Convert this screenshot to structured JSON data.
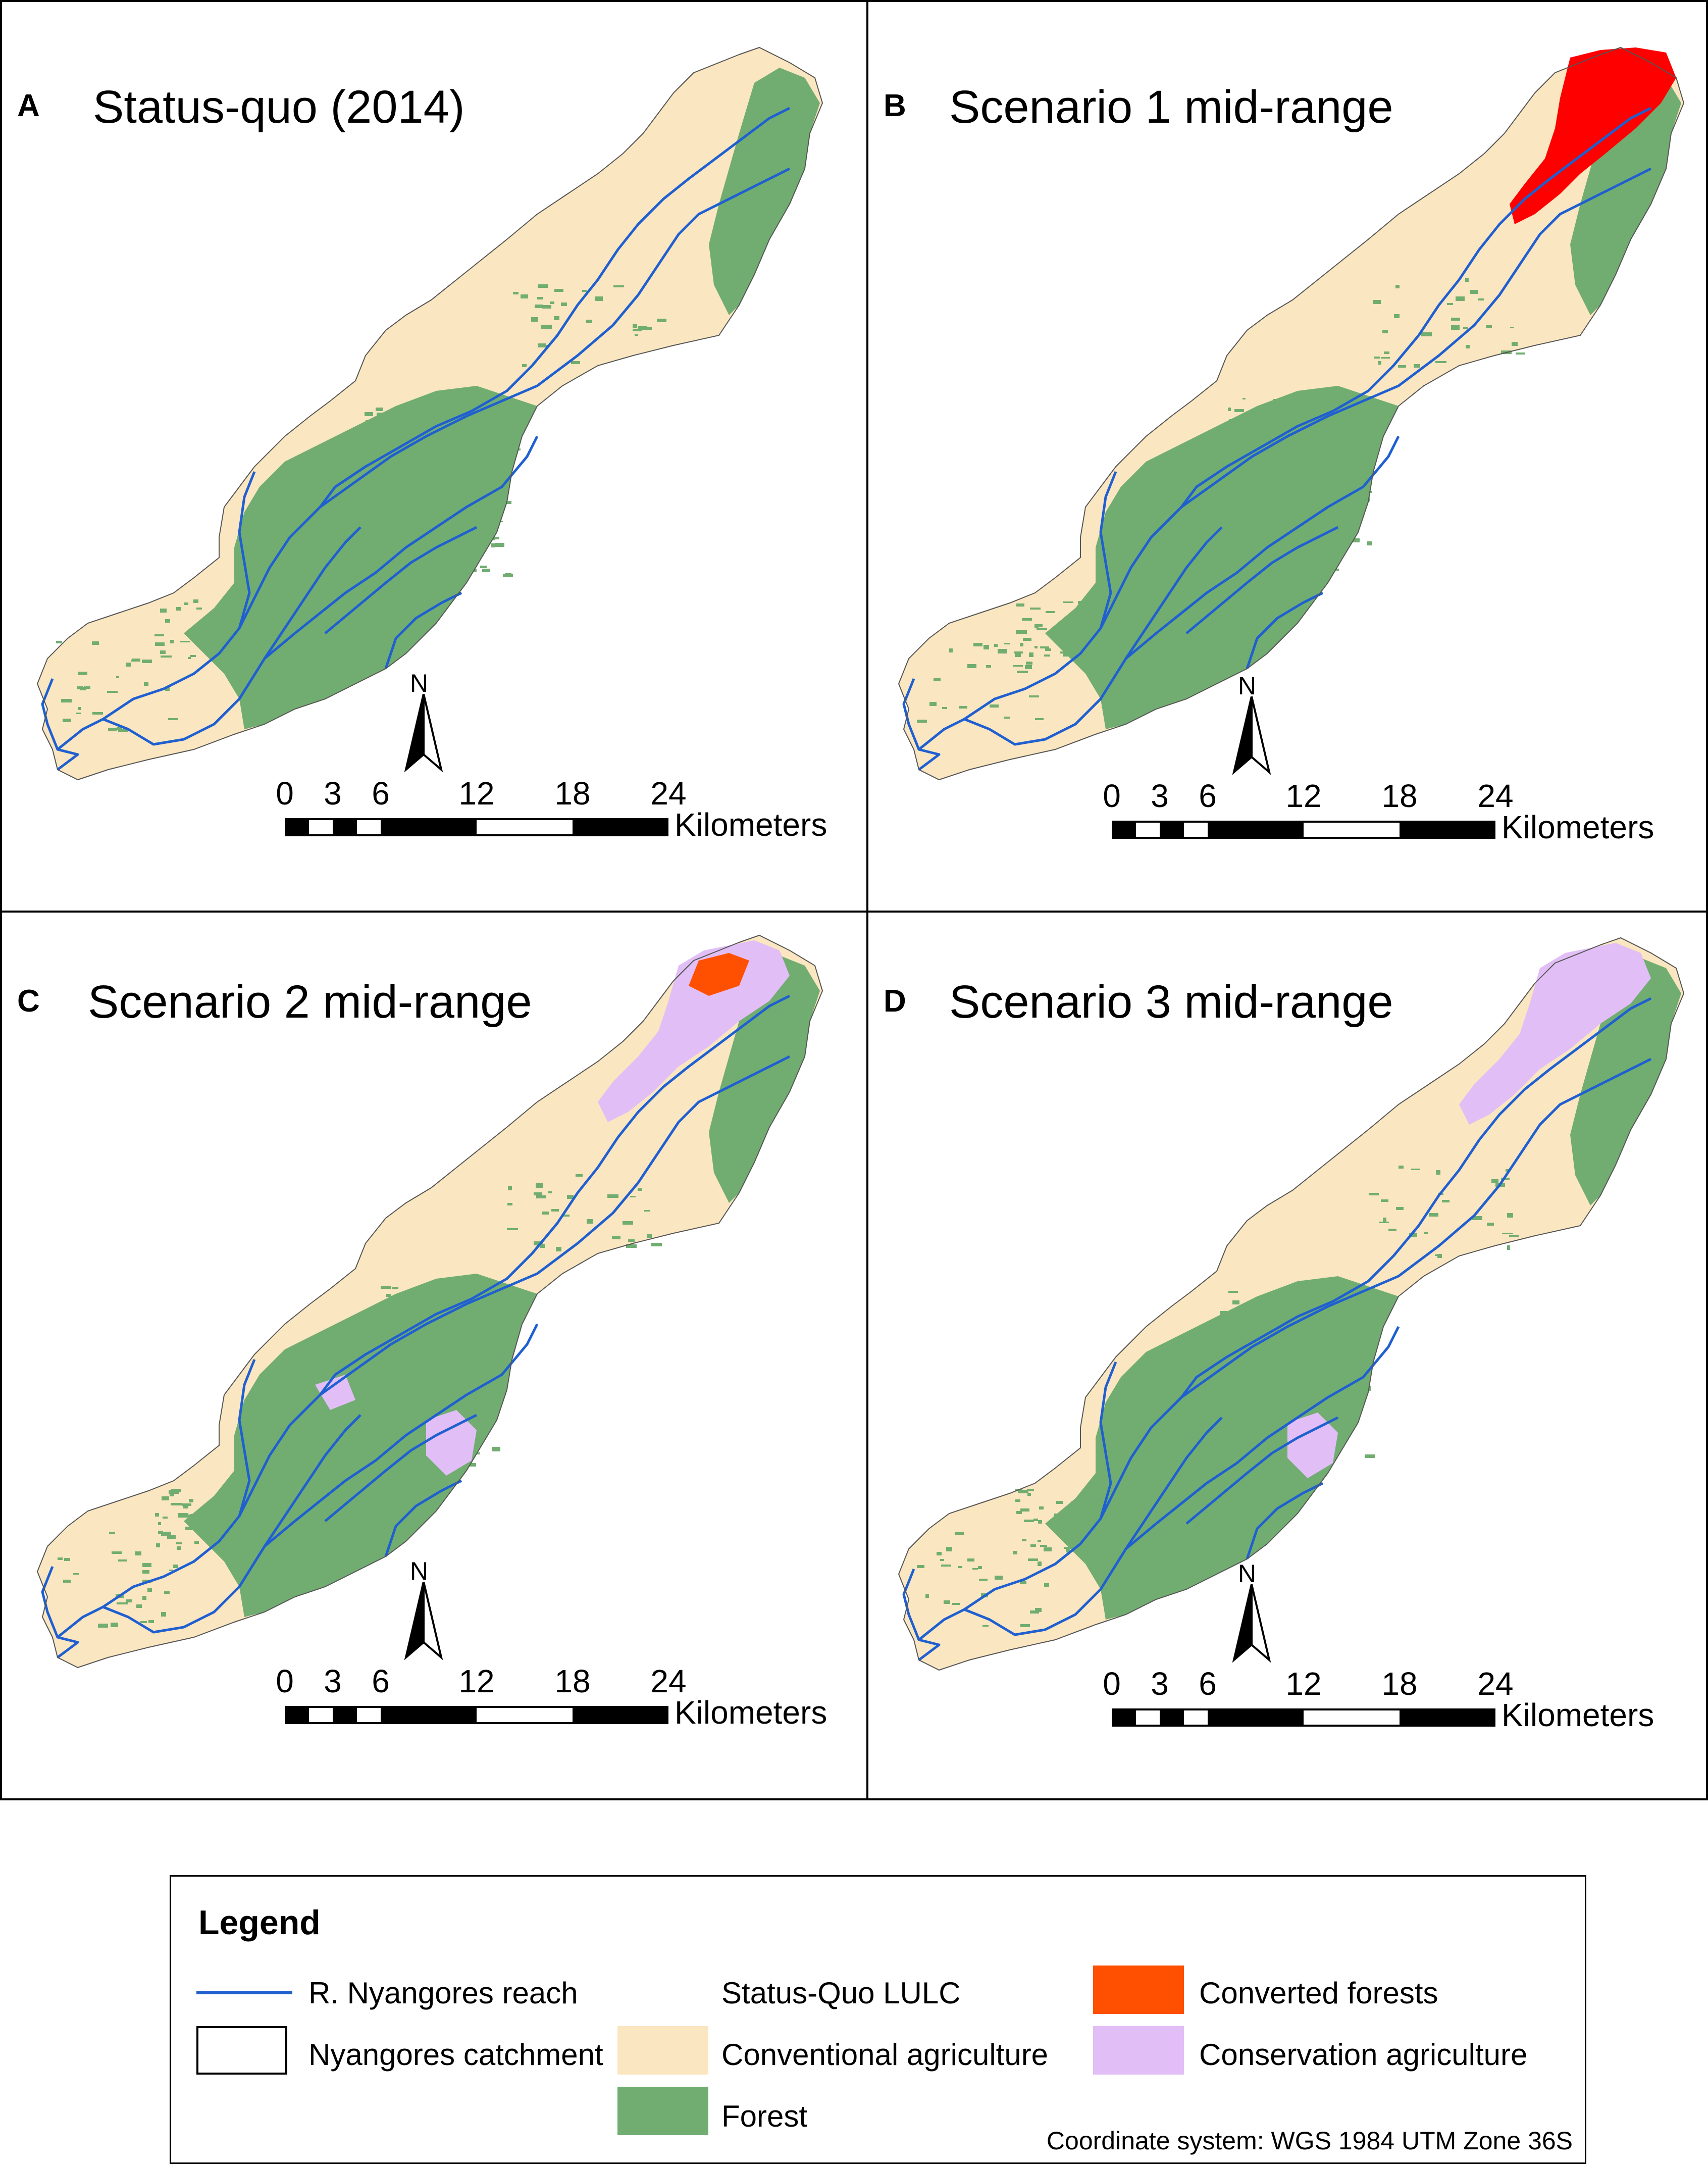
{
  "colors": {
    "conventional_agriculture": "#fae6c0",
    "forest": "#71ad71",
    "converted_forests": "#fe5000",
    "converted_forests_b": "#fe0000",
    "conservation_agriculture": "#e1bff6",
    "reach": "#1f5fd0"
  },
  "panels": [
    {
      "letter": "A",
      "title": "Status-quo (2014)",
      "scenario": "status-quo"
    },
    {
      "letter": "B",
      "title": "Scenario 1 mid-range",
      "scenario": "scenario-1"
    },
    {
      "letter": "C",
      "title": "Scenario 2 mid-range",
      "scenario": "scenario-2"
    },
    {
      "letter": "D",
      "title": "Scenario 3 mid-range",
      "scenario": "scenario-3"
    }
  ],
  "north_arrow": {
    "label": "N"
  },
  "scale_bar": {
    "ticks": [
      "0",
      "3",
      "6",
      "12",
      "18",
      "24"
    ],
    "unit": "Kilometers"
  },
  "legend": {
    "title": "Legend",
    "reach_label": "R. Nyangores reach",
    "catchment_label": "Nyangores catchment",
    "status_quo_heading": "Status-Quo LULC",
    "conventional_label": "Conventional agriculture",
    "forest_label": "Forest",
    "converted_label": "Converted forests",
    "conservation_label": "Conservation agriculture",
    "coordinate_system": "Coordinate system: WGS 1984 UTM Zone 36S"
  }
}
